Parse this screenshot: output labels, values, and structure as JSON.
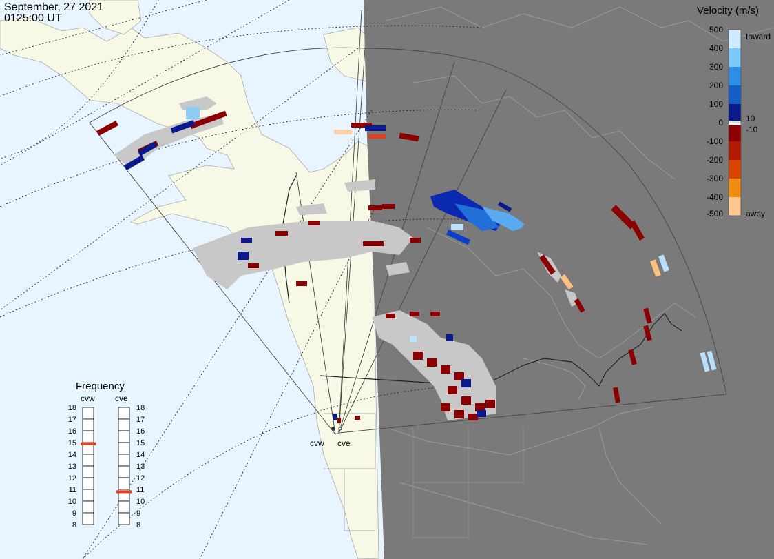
{
  "header": {
    "date": "September, 27 2021",
    "time": "0125:00 UT"
  },
  "legend": {
    "title": "Velocity (m/s)",
    "toward": "toward",
    "away": "away",
    "ticks": [
      "500",
      "400",
      "300",
      "200",
      "100",
      "10",
      "0",
      "-10",
      "-100",
      "-200",
      "-300",
      "-400",
      "-500"
    ]
  },
  "frequency": {
    "title": "Frequency",
    "radars": [
      {
        "label": "cvw",
        "freq_mhz": 14.9
      },
      {
        "label": "cve",
        "freq_mhz": 10.8
      }
    ],
    "scale": [
      "18",
      "17",
      "16",
      "15",
      "14",
      "13",
      "12",
      "11",
      "10",
      "9",
      "8"
    ],
    "marker_color": "#e0401a"
  },
  "map": {
    "sites": [
      {
        "label": "cvw"
      },
      {
        "label": "cve"
      }
    ],
    "colors": {
      "ocean_day": "#e8f5ff",
      "land_day": "#f8f8e6",
      "night": "#7a7a7a",
      "ground_scatter": "#c8c8c8"
    }
  }
}
